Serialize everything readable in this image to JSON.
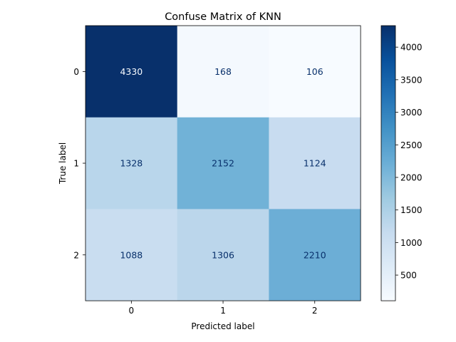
{
  "chart_data": {
    "type": "heatmap",
    "title": "Confuse Matrix of KNN",
    "xlabel": "Predicted label",
    "ylabel": "True label",
    "x_categories": [
      "0",
      "1",
      "2"
    ],
    "y_categories": [
      "0",
      "1",
      "2"
    ],
    "matrix": [
      [
        4330,
        168,
        106
      ],
      [
        1328,
        2152,
        1124
      ],
      [
        1088,
        1306,
        2210
      ]
    ],
    "colormap": "Blues",
    "colorbar": {
      "min": 106,
      "max": 4330,
      "ticks": [
        500,
        1000,
        1500,
        2000,
        2500,
        3000,
        3500,
        4000
      ]
    },
    "colors": {
      "low": "#f7fbff",
      "high": "#08306b",
      "text_on_light": "#08306b",
      "text_on_dark": "#f7fbff"
    }
  }
}
